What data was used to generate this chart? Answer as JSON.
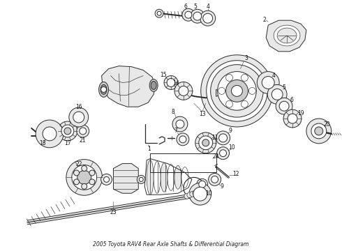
{
  "title": "2005 Toyota RAV4 Rear Axle Shafts & Differential Diagram",
  "bg_color": "#ffffff",
  "lc": "#2a2a2a",
  "lw_main": 0.7,
  "lw_thin": 0.45,
  "fig_width": 4.9,
  "fig_height": 3.6,
  "dpi": 100,
  "label_fontsize": 5.5,
  "label_color": "#111111"
}
